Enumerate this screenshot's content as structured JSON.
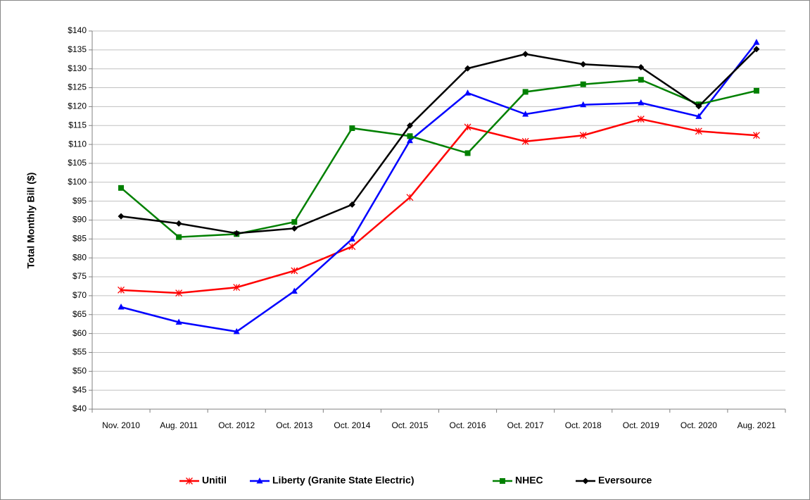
{
  "chart_data": {
    "type": "line",
    "y_label": "Total Monthly Bill ($)",
    "categories": [
      "Nov. 2010",
      "Aug. 2011",
      "Oct. 2012",
      "Oct. 2013",
      "Oct. 2014",
      "Oct. 2015",
      "Oct. 2016",
      "Oct. 2017",
      "Oct. 2018",
      "Oct. 2019",
      "Oct. 2020",
      "Aug. 2021"
    ],
    "series": [
      {
        "name": "Unitil",
        "color": "#ff0000",
        "marker": "star",
        "values": [
          71.5,
          70.7,
          72.2,
          76.6,
          83.0,
          96.0,
          114.6,
          110.8,
          112.4,
          116.7,
          113.5,
          112.4
        ]
      },
      {
        "name": "Liberty (Granite State Electric)",
        "color": "#0000ff",
        "marker": "triangle",
        "values": [
          67.0,
          63.0,
          60.5,
          71.2,
          85.0,
          111.0,
          123.6,
          118.0,
          120.5,
          121.0,
          117.4,
          137.0
        ]
      },
      {
        "name": "NHEC",
        "color": "#008000",
        "marker": "square",
        "values": [
          98.5,
          85.5,
          86.3,
          89.5,
          114.3,
          112.2,
          107.7,
          123.9,
          125.9,
          127.1,
          120.6,
          124.2
        ]
      },
      {
        "name": "Eversource",
        "color": "#000000",
        "marker": "diamond",
        "values": [
          91.0,
          89.1,
          86.5,
          87.8,
          94.1,
          115.0,
          130.1,
          133.9,
          131.2,
          130.4,
          120.1,
          135.2
        ]
      }
    ],
    "ylim": [
      40,
      140
    ],
    "yticks": [
      {
        "value": 40,
        "label": "$40"
      },
      {
        "value": 45,
        "label": "$45"
      },
      {
        "value": 50,
        "label": "$50"
      },
      {
        "value": 55,
        "label": "$55"
      },
      {
        "value": 60,
        "label": "$60"
      },
      {
        "value": 65,
        "label": "$65"
      },
      {
        "value": 70,
        "label": "$70"
      },
      {
        "value": 75,
        "label": "$75"
      },
      {
        "value": 80,
        "label": "$80"
      },
      {
        "value": 85,
        "label": "$85"
      },
      {
        "value": 90,
        "label": "$90"
      },
      {
        "value": 95,
        "label": "$95"
      },
      {
        "value": 100,
        "label": "$100"
      },
      {
        "value": 105,
        "label": "$105"
      },
      {
        "value": 110,
        "label": "$110"
      },
      {
        "value": 115,
        "label": "$115"
      },
      {
        "value": 120,
        "label": "$120"
      },
      {
        "value": 125,
        "label": "$125"
      },
      {
        "value": 130,
        "label": "$130"
      },
      {
        "value": 135,
        "label": "$135"
      },
      {
        "value": 140,
        "label": "$140"
      }
    ],
    "grid": true,
    "legend": "bottom"
  }
}
